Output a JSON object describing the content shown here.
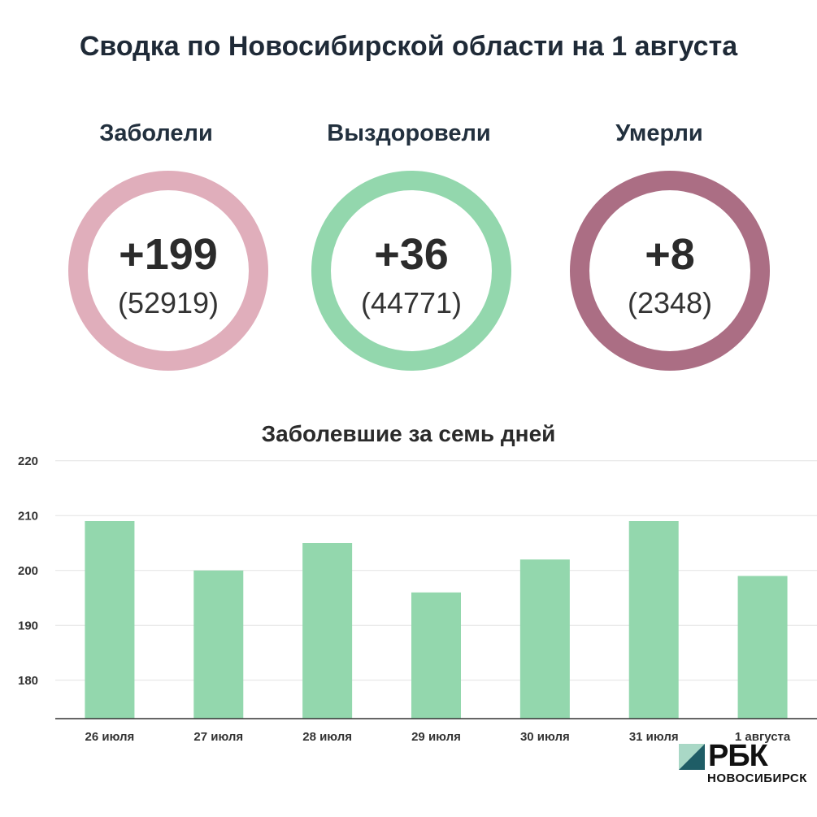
{
  "title": "Сводка по Новосибирской области на 1 августа",
  "stats": [
    {
      "label": "Заболели",
      "delta": "+199",
      "total": "(52919)",
      "color": "#e0aebb"
    },
    {
      "label": "Выздоровели",
      "delta": "+36",
      "total": "(44771)",
      "color": "#93d7ad"
    },
    {
      "label": "Умерли",
      "delta": "+8",
      "total": "(2348)",
      "color": "#ab6e84"
    }
  ],
  "chart_data": {
    "type": "bar",
    "title": "Заболевшие за семь дней",
    "categories": [
      "26 июля",
      "27 июля",
      "28 июля",
      "29 июля",
      "30 июля",
      "31 июля",
      "1 августа"
    ],
    "values": [
      209,
      200,
      205,
      196,
      202,
      209,
      199
    ],
    "ylim": [
      173,
      221
    ],
    "yticks": [
      180,
      190,
      200,
      210,
      220
    ],
    "bar_color": "#93d7ad",
    "grid": true
  },
  "logo": {
    "name": "РБК",
    "sub": "НОВОСИБИРСК"
  }
}
